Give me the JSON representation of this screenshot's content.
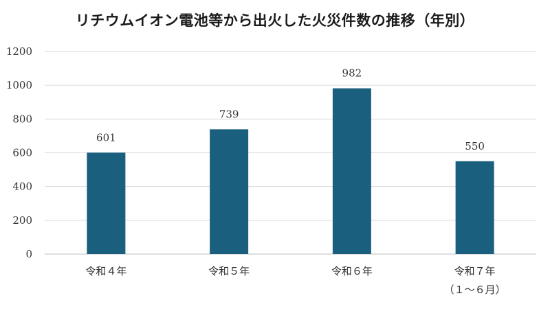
{
  "chart_data": {
    "type": "bar",
    "title": "リチウムイオン電池等から出火した火災件数の推移（年別）",
    "xlabel": "",
    "ylabel": "",
    "categories": [
      [
        "令和４年"
      ],
      [
        "令和５年"
      ],
      [
        "令和６年"
      ],
      [
        "令和７年",
        "（１〜６月）"
      ]
    ],
    "values": [
      601,
      739,
      982,
      550
    ],
    "ylim": [
      0,
      1200
    ],
    "yticks": [
      0,
      200,
      400,
      600,
      800,
      1000,
      1200
    ],
    "grid": true,
    "legend": "none",
    "colors": {
      "bar": "#1b5f7e",
      "grid": "#d9d9d9",
      "axis": "#bfbfbf"
    }
  }
}
